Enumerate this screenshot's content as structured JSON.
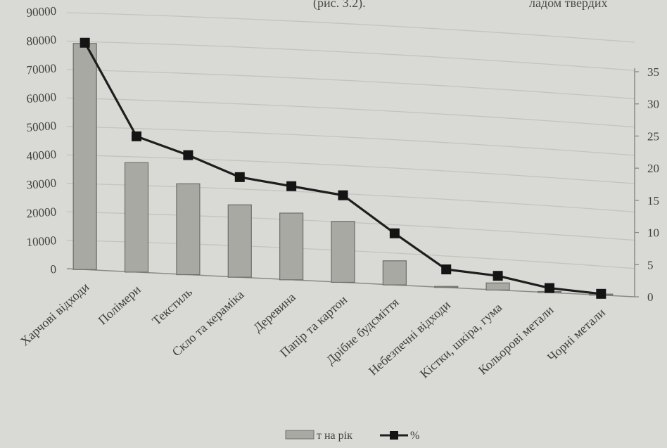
{
  "header": {
    "fig_ref": "(рис. 3.2).",
    "right_fragment": "ладом  твердих"
  },
  "chart_data": {
    "type": "bar",
    "categories": [
      "Харчові відходи",
      "Полімери",
      "Текстиль",
      "Скло та кераміка",
      "Деревина",
      "Папір та картон",
      "Дрібне будсміття",
      "Небезпечні відходи",
      "Кістки, шкіра, гума",
      "Кольорові метали",
      "Чорні метали"
    ],
    "series": [
      {
        "name": "т на рік",
        "type": "bar",
        "axis": "left",
        "values": [
          79500,
          38500,
          32000,
          25500,
          23500,
          21500,
          8500,
          0,
          2500,
          0,
          0
        ]
      },
      {
        "name": "%",
        "type": "line",
        "axis": "right",
        "values": [
          38,
          21,
          18.5,
          15.5,
          14.5,
          13.5,
          8,
          2.8,
          2.2,
          0.7,
          0.2
        ]
      }
    ],
    "y_left": {
      "min": 0,
      "max": 90000,
      "ticks": [
        0,
        10000,
        20000,
        30000,
        40000,
        50000,
        60000,
        70000,
        80000,
        90000
      ]
    },
    "y_right": {
      "min": 0,
      "max": 35,
      "ticks": [
        0,
        5,
        10,
        15,
        20,
        25,
        30,
        35
      ]
    },
    "grid": true,
    "legend_position": "bottom",
    "colors": {
      "bar_fill": "#a9a9a4",
      "bar_stroke": "#6e6e69",
      "line": "#1e1e1e",
      "marker": "#141414",
      "grid": "#c3c3bf",
      "text": "#3f3f3f"
    }
  }
}
